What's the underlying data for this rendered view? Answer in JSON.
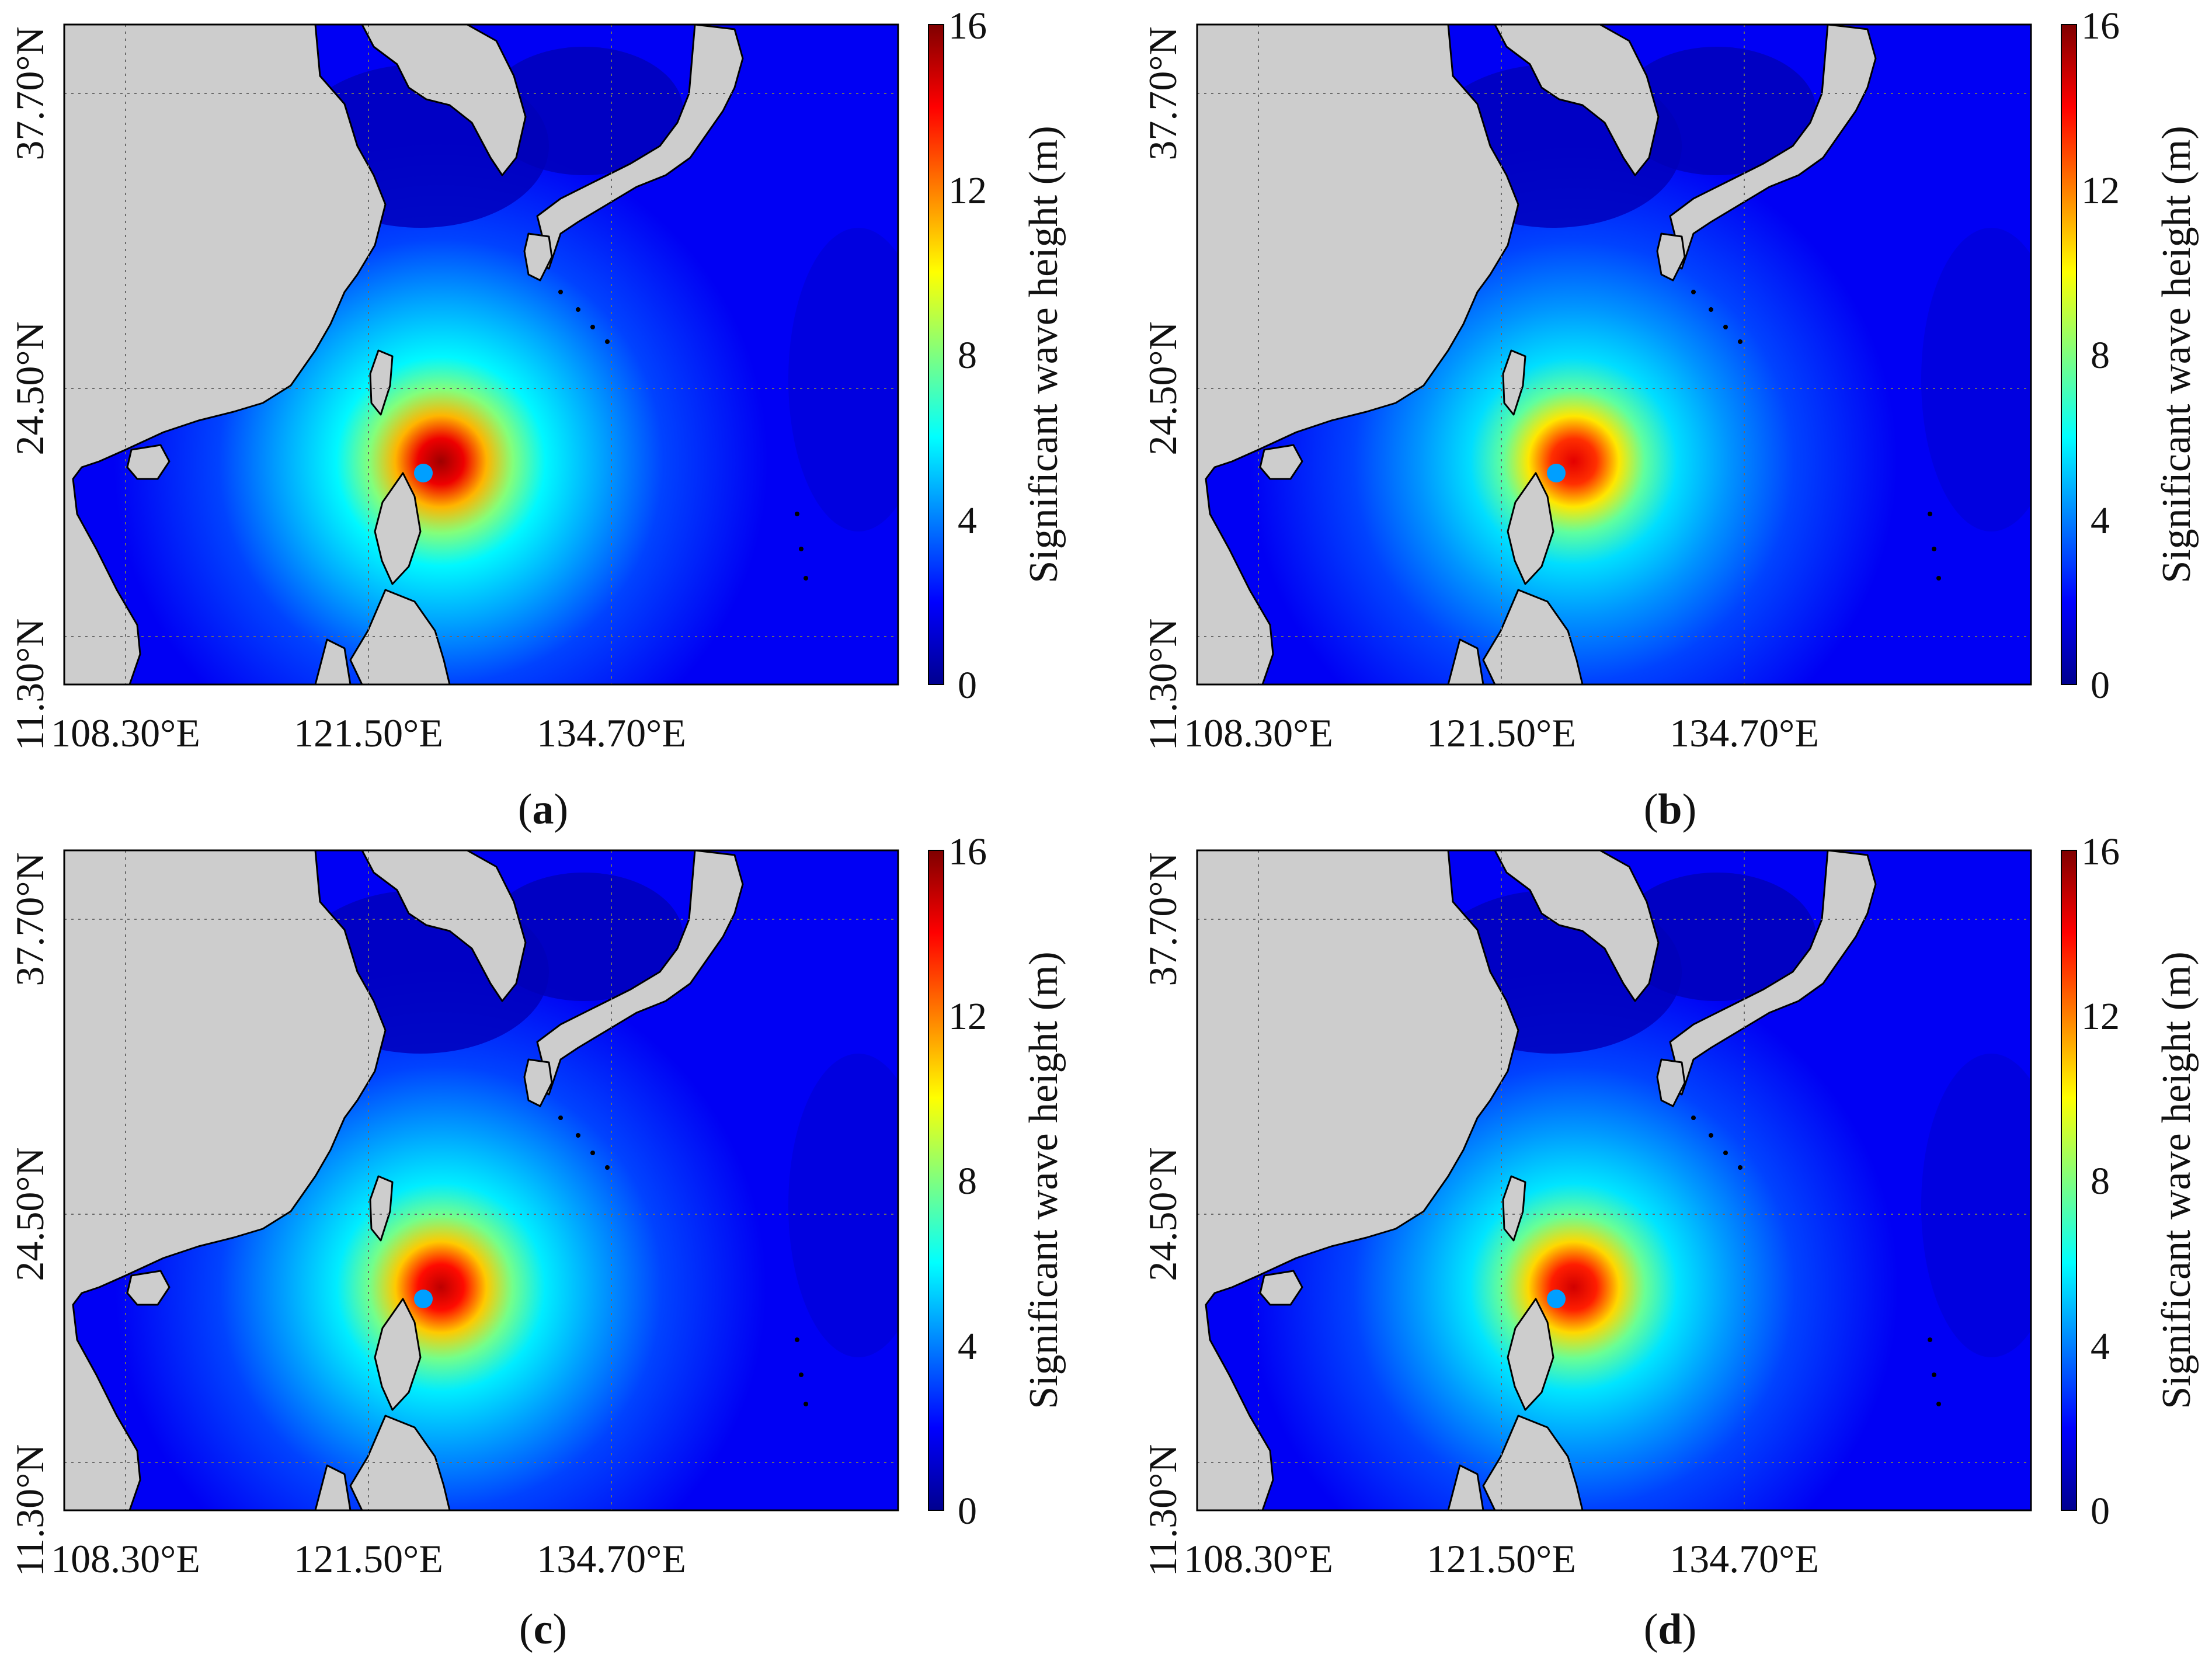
{
  "panels": [
    {
      "id": "a",
      "caption_letter": "a",
      "peak_scale": 1.0
    },
    {
      "id": "b",
      "caption_letter": "b",
      "peak_scale": 0.93
    },
    {
      "id": "c",
      "caption_letter": "c",
      "peak_scale": 0.97
    },
    {
      "id": "d",
      "caption_letter": "d",
      "peak_scale": 0.95
    }
  ],
  "axes": {
    "lat_ticks": [
      "11.30°N",
      "24.50°N",
      "37.70°N"
    ],
    "lon_ticks": [
      "108.30°E",
      "121.50°E",
      "134.70°E"
    ]
  },
  "colorbar": {
    "label": "Significant wave height (m)",
    "ticks": [
      "0",
      "4",
      "8",
      "12",
      "16"
    ],
    "min": 0,
    "max": 16,
    "colormap": [
      "#00008f",
      "#0000ff",
      "#007fff",
      "#00ffff",
      "#7fff7f",
      "#ffff00",
      "#ff7f00",
      "#ff0000",
      "#7f0000"
    ]
  },
  "colors": {
    "land": "#cdcdcd",
    "coastline": "#000000",
    "open_ocean": "#1a3fd6",
    "grid": "#6a6a6a"
  },
  "map_features": {
    "peak_height_m": 15.5,
    "eye_height_m": 4.5,
    "background_ocean_m": 1.8
  }
}
